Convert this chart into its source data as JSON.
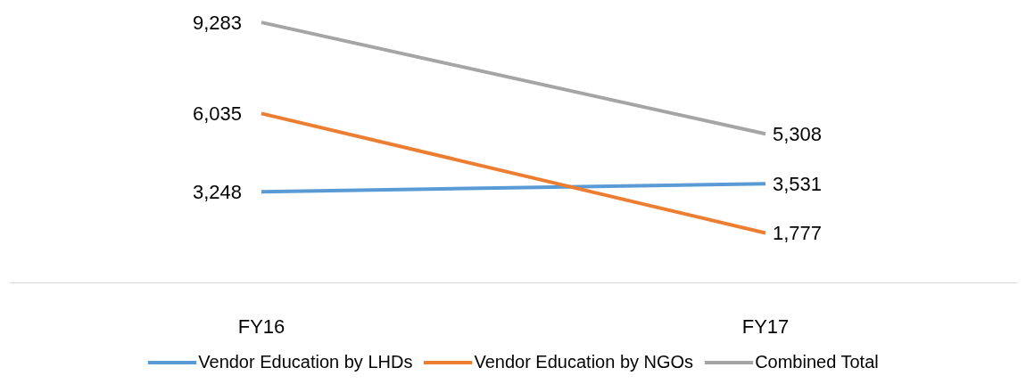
{
  "chart_data": {
    "type": "line",
    "categories": [
      "FY16",
      "FY17"
    ],
    "series": [
      {
        "name": "Vendor Education by LHDs",
        "color": "#5b9bd5",
        "values": [
          3248,
          3531
        ],
        "value_labels": [
          "3,248",
          "3,531"
        ]
      },
      {
        "name": "Vendor Education by NGOs",
        "color": "#ed7d31",
        "values": [
          6035,
          1777
        ],
        "value_labels": [
          "6,035",
          "1,777"
        ]
      },
      {
        "name": "Combined Total",
        "color": "#a5a5a5",
        "values": [
          9283,
          5308
        ],
        "value_labels": [
          "9,283",
          "5,308"
        ]
      }
    ],
    "legend": "bottom",
    "line_style": "solid"
  }
}
